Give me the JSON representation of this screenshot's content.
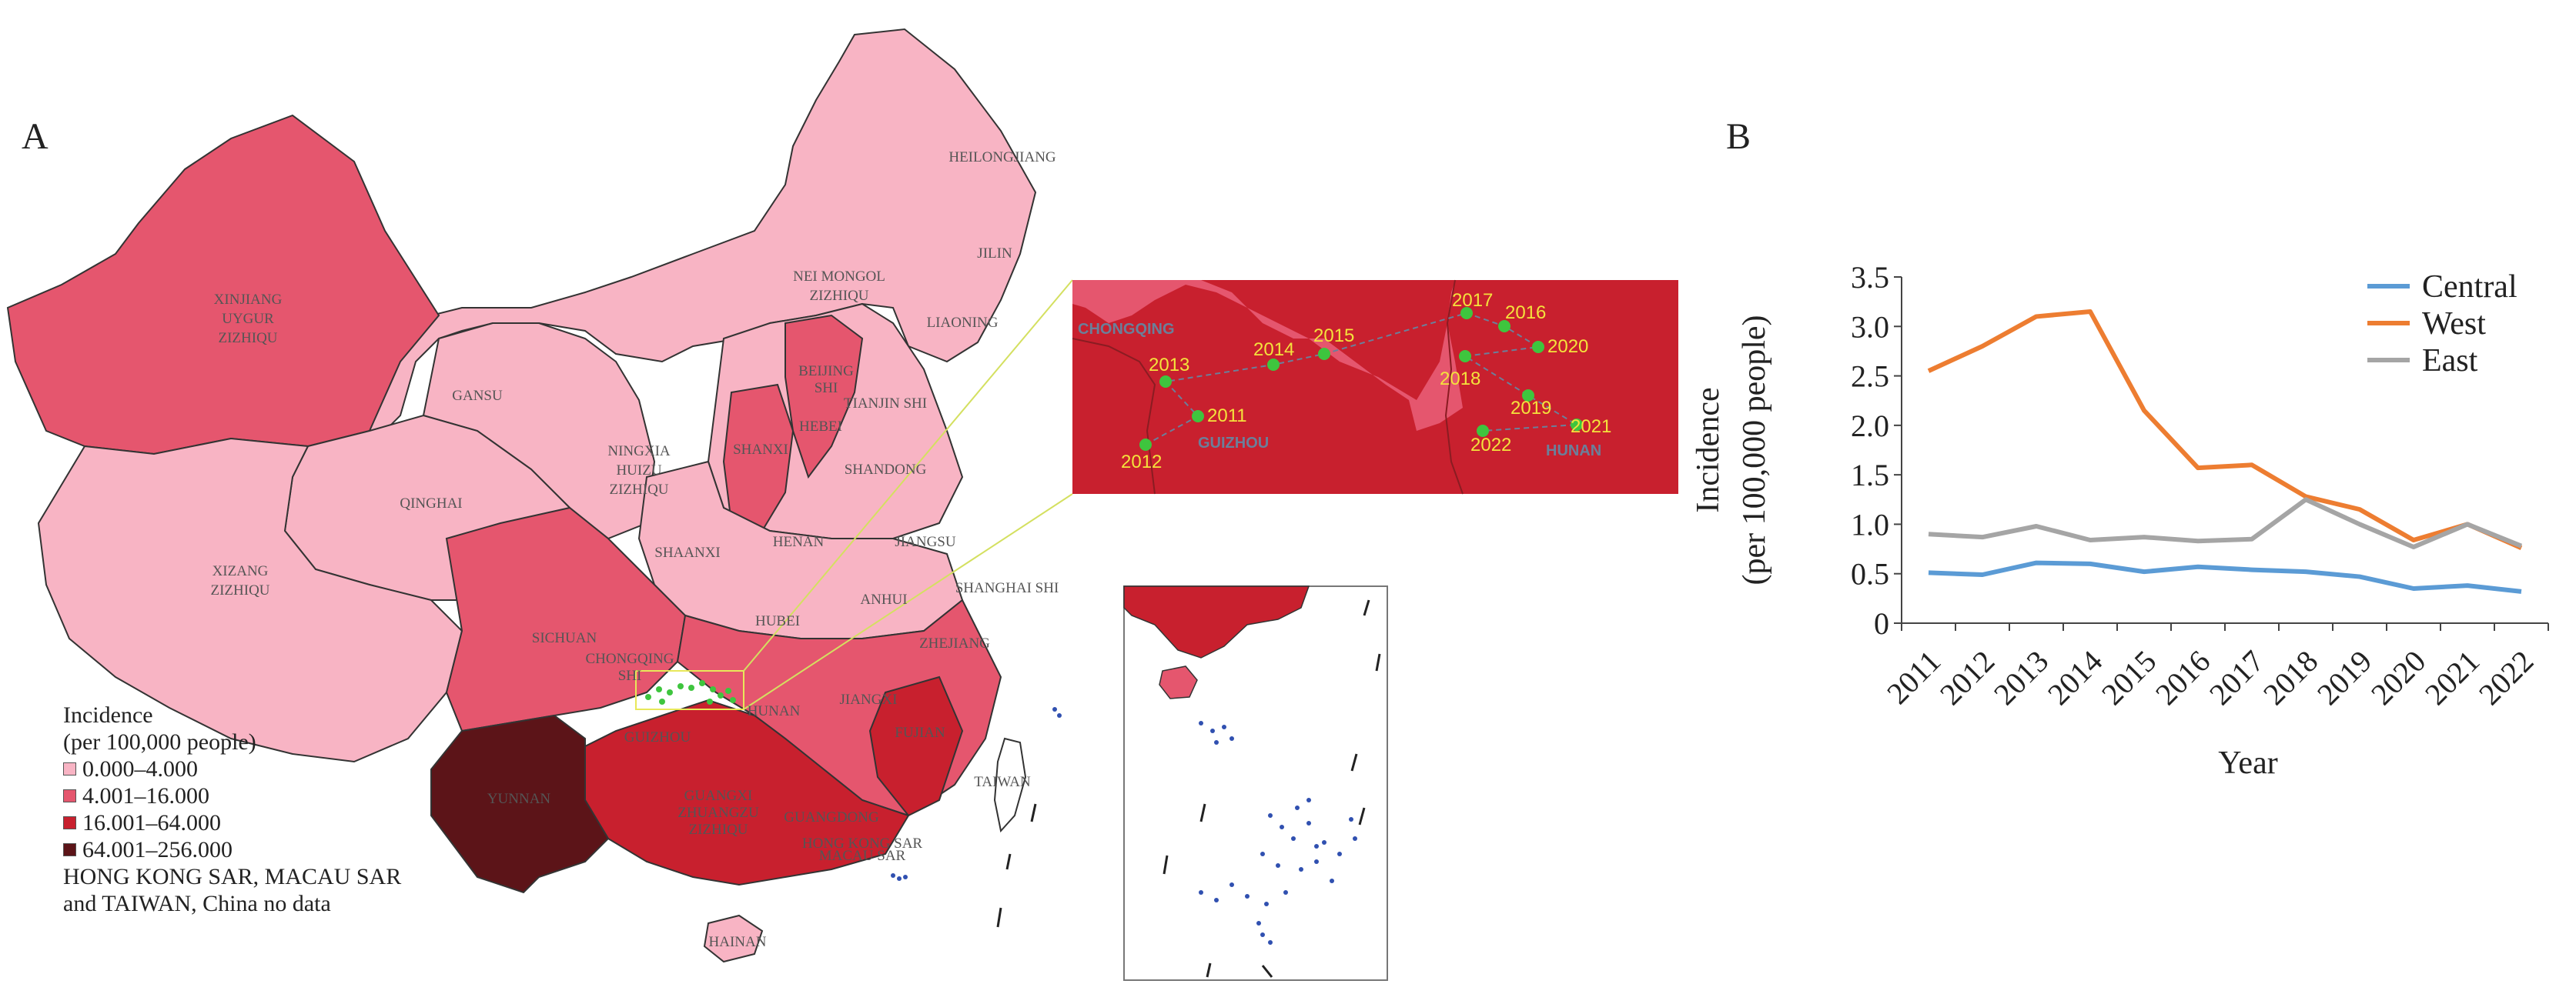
{
  "panel_a": {
    "letter": "A",
    "province_labels": [
      "HEILONGJIANG",
      "JILIN",
      "LIAONING",
      "NEI MONGOL",
      "ZIZHIQU",
      "XINJIANG",
      "UYGUR",
      "ZIZHIQU",
      "GANSU",
      "BEIJING",
      "SHI",
      "TIANJIN SHI",
      "HEBEI",
      "SHANXI",
      "SHANDONG",
      "NINGXIA",
      "HUIZU",
      "ZIZHIQU",
      "QINGHAI",
      "XIZANG",
      "ZIZHIQU",
      "HENAN",
      "JIANGSU",
      "SHAANXI",
      "SHANGHAI SHI",
      "HUBEI",
      "ANHUI",
      "ZHEJIANG",
      "SICHUAN",
      "CHONGQING",
      "SHI",
      "HUNAN",
      "JIANGXI",
      "FUJIAN",
      "GUIZHOU",
      "YUNNAN",
      "GUANGXI",
      "ZHUANGZU",
      "ZIZHIQU",
      "GUANGDONG",
      "TAIWAN",
      "HAINAN",
      "HONG KONG SAR",
      "MACAU SAR"
    ],
    "inset_labels": {
      "chongqing": "CHONGQING",
      "guizhou": "GUIZHOU",
      "hunan": "HUNAN",
      "years": [
        "2011",
        "2012",
        "2013",
        "2014",
        "2015",
        "2016",
        "2017",
        "2018",
        "2019",
        "2020",
        "2021",
        "2022"
      ]
    },
    "legend": {
      "title_line1": "Incidence",
      "title_line2": "(per 100,000 people)",
      "classes": [
        {
          "label": "0.000–4.000",
          "color": "#f8b4c4"
        },
        {
          "label": "4.001–16.000",
          "color": "#e5566e"
        },
        {
          "label": "16.001–64.000",
          "color": "#c8202e"
        },
        {
          "label": "64.001–256.000",
          "color": "#5c1418"
        }
      ],
      "note_line1": "HONG KONG SAR, MACAU SAR",
      "note_line2": "and TAIWAN, China no data"
    }
  },
  "chart_data": {
    "panel_letter": "B",
    "type": "line",
    "x": [
      "2011",
      "2012",
      "2013",
      "2014",
      "2015",
      "2016",
      "2017",
      "2018",
      "2019",
      "2020",
      "2021",
      "2022"
    ],
    "series": [
      {
        "name": "Central",
        "color": "#5b9bd5",
        "values": [
          0.51,
          0.49,
          0.61,
          0.6,
          0.52,
          0.57,
          0.54,
          0.52,
          0.47,
          0.35,
          0.38,
          0.32
        ]
      },
      {
        "name": "West",
        "color": "#ed7d31",
        "values": [
          2.55,
          2.8,
          3.1,
          3.15,
          2.15,
          1.57,
          1.6,
          1.28,
          1.15,
          0.84,
          1.0,
          0.76
        ]
      },
      {
        "name": "East",
        "color": "#a5a5a5",
        "values": [
          0.9,
          0.87,
          0.98,
          0.84,
          0.87,
          0.83,
          0.85,
          1.25,
          1.0,
          0.77,
          1.0,
          0.78
        ]
      }
    ],
    "xlabel": "Year",
    "ylabel_line1": "Incidence",
    "ylabel_line2": "(per 100,000 people)",
    "ylim": [
      0,
      3.5
    ],
    "yticks": [
      "0",
      "0.5",
      "1.0",
      "1.5",
      "2.0",
      "2.5",
      "3.0",
      "3.5"
    ],
    "legend_position": "top-right",
    "grid": false
  }
}
